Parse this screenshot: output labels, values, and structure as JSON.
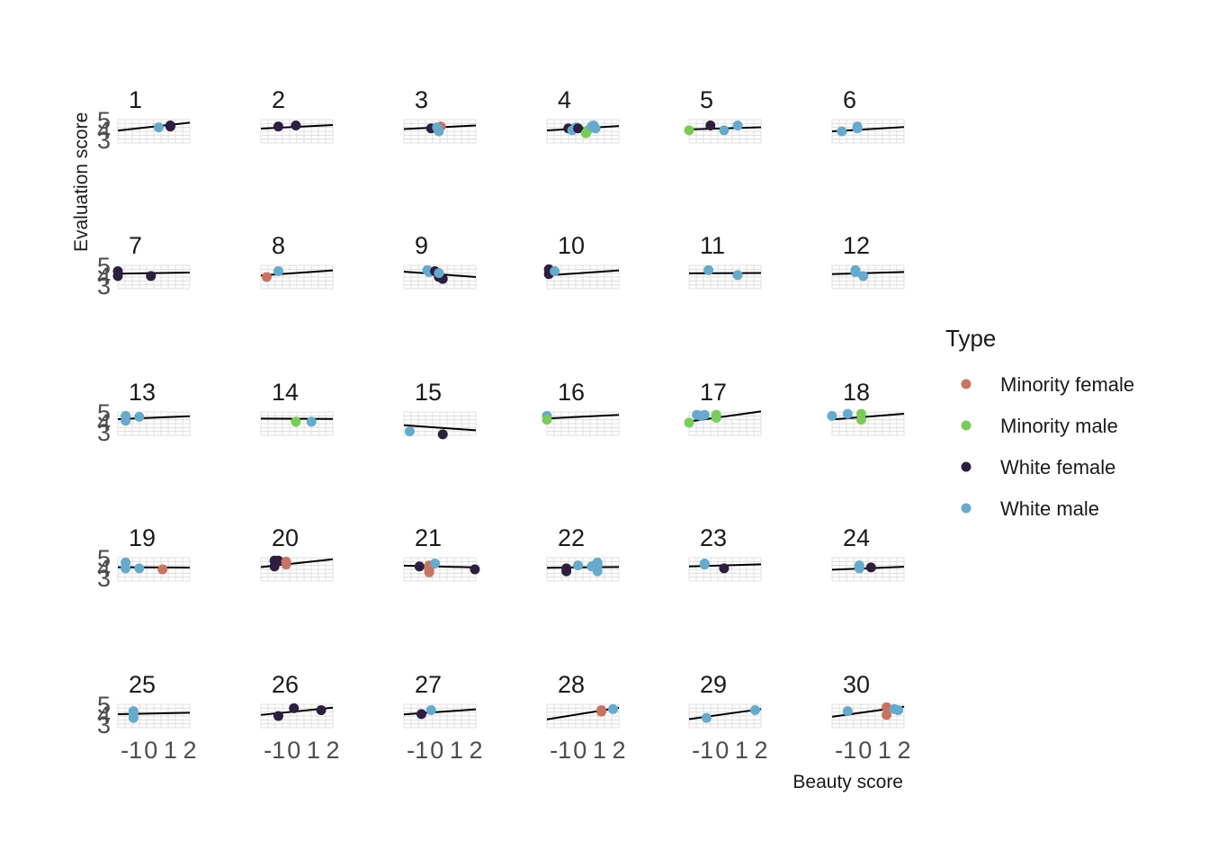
{
  "chart_data": {
    "type": "scatter",
    "facet_by": "Instructor",
    "xlabel": "Beauty score",
    "ylabel": "Evaluation score",
    "x_ticks": [
      "-1",
      "0",
      "1",
      "2"
    ],
    "y_ticks": [
      "5",
      "4",
      "3"
    ],
    "xlim": [
      -1.7,
      2.0
    ],
    "ylim": [
      2.7,
      5.1
    ],
    "grid": true,
    "legend": {
      "title": "Type",
      "placement": "right",
      "entries": [
        {
          "name": "Minority female",
          "color": "#C87463"
        },
        {
          "name": "Minority male",
          "color": "#7ACC59"
        },
        {
          "name": "White female",
          "color": "#2E1E3F"
        },
        {
          "name": "White male",
          "color": "#66AACC"
        }
      ]
    },
    "line_color": "#000000",
    "panels": [
      {
        "label": "1",
        "fit": [
          4.35,
          0.22
        ],
        "points": [
          [
            0.4,
            4.3,
            "White male"
          ],
          [
            1.0,
            4.5,
            "White female"
          ],
          [
            1.0,
            4.4,
            "White female"
          ]
        ]
      },
      {
        "label": "2",
        "fit": [
          4.35,
          0.1
        ],
        "points": [
          [
            -0.8,
            4.4,
            "White female"
          ],
          [
            0.1,
            4.5,
            "White female"
          ]
        ]
      },
      {
        "label": "3",
        "fit": [
          4.3,
          0.1
        ],
        "points": [
          [
            -0.3,
            4.2,
            "White female"
          ],
          [
            0.2,
            4.4,
            "Minority female"
          ],
          [
            0.1,
            3.9,
            "White male"
          ],
          [
            0.0,
            4.3,
            "White male"
          ]
        ]
      },
      {
        "label": "4",
        "fit": [
          4.2,
          0.12
        ],
        "points": [
          [
            -0.6,
            4.2,
            "White female"
          ],
          [
            -0.4,
            4.0,
            "White male"
          ],
          [
            -0.2,
            4.3,
            "White male"
          ],
          [
            -0.1,
            4.2,
            "White female"
          ],
          [
            0.3,
            3.7,
            "Minority male"
          ],
          [
            0.4,
            4.0,
            "Minority male"
          ],
          [
            0.6,
            4.4,
            "White male"
          ],
          [
            0.7,
            4.5,
            "White male"
          ],
          [
            0.8,
            4.2,
            "White male"
          ]
        ]
      },
      {
        "label": "5",
        "fit": [
          4.2,
          0.06
        ],
        "points": [
          [
            -1.7,
            4.0,
            "Minority male"
          ],
          [
            -0.6,
            4.5,
            "White female"
          ],
          [
            0.1,
            4.0,
            "White male"
          ],
          [
            0.8,
            4.5,
            "White male"
          ]
        ]
      },
      {
        "label": "6",
        "fit": [
          4.1,
          0.12
        ],
        "points": [
          [
            -1.2,
            3.9,
            "White male"
          ],
          [
            -0.4,
            4.2,
            "White male"
          ],
          [
            -0.4,
            4.4,
            "White male"
          ]
        ]
      },
      {
        "label": "7",
        "fit": [
          4.3,
          0.03
        ],
        "points": [
          [
            -1.7,
            4.5,
            "White female"
          ],
          [
            -1.7,
            4.0,
            "White female"
          ],
          [
            0.0,
            4.0,
            "White female"
          ]
        ]
      },
      {
        "label": "8",
        "fit": [
          4.3,
          0.14
        ],
        "points": [
          [
            -1.4,
            3.9,
            "Minority female"
          ],
          [
            -0.8,
            4.5,
            "White male"
          ]
        ]
      },
      {
        "label": "9",
        "fit": [
          4.2,
          -0.15
        ],
        "points": [
          [
            -0.5,
            4.6,
            "White male"
          ],
          [
            -0.4,
            4.5,
            "White male"
          ],
          [
            -0.4,
            4.4,
            "White male"
          ],
          [
            -0.1,
            4.5,
            "White female"
          ],
          [
            0.1,
            3.9,
            "White female"
          ],
          [
            0.3,
            3.7,
            "White female"
          ],
          [
            0.1,
            4.3,
            "White male"
          ]
        ]
      },
      {
        "label": "10",
        "fit": [
          4.3,
          0.14
        ],
        "points": [
          [
            -1.6,
            4.7,
            "White female"
          ],
          [
            -1.6,
            4.2,
            "White female"
          ],
          [
            -1.3,
            4.5,
            "White male"
          ]
        ]
      },
      {
        "label": "11",
        "fit": [
          4.3,
          0.01
        ],
        "points": [
          [
            -0.7,
            4.6,
            "White male"
          ],
          [
            0.8,
            4.1,
            "White male"
          ]
        ]
      },
      {
        "label": "12",
        "fit": [
          4.3,
          0.06
        ],
        "points": [
          [
            -0.5,
            4.6,
            "White male"
          ],
          [
            -0.5,
            4.4,
            "White male"
          ],
          [
            -0.1,
            4.0,
            "White male"
          ]
        ]
      },
      {
        "label": "13",
        "fit": [
          4.5,
          0.08
        ],
        "points": [
          [
            -1.3,
            4.7,
            "White male"
          ],
          [
            -1.3,
            4.2,
            "White male"
          ],
          [
            -0.6,
            4.6,
            "White male"
          ]
        ]
      },
      {
        "label": "14",
        "fit": [
          4.4,
          -0.01
        ],
        "points": [
          [
            0.1,
            4.1,
            "Minority male"
          ],
          [
            0.9,
            4.1,
            "White male"
          ]
        ]
      },
      {
        "label": "15",
        "fit": [
          3.5,
          -0.14
        ],
        "points": [
          [
            -1.4,
            3.1,
            "White male"
          ],
          [
            0.3,
            2.8,
            "White female"
          ]
        ]
      },
      {
        "label": "16",
        "fit": [
          4.6,
          0.1
        ],
        "points": [
          [
            -1.7,
            4.7,
            "White male"
          ],
          [
            -1.7,
            4.3,
            "Minority male"
          ]
        ]
      },
      {
        "label": "17",
        "fit": [
          4.6,
          0.28
        ],
        "points": [
          [
            -1.7,
            4.0,
            "Minority male"
          ],
          [
            -1.3,
            4.8,
            "White male"
          ],
          [
            -1.1,
            4.7,
            "White male"
          ],
          [
            -0.9,
            4.8,
            "White male"
          ],
          [
            -0.3,
            4.8,
            "Minority male"
          ],
          [
            -0.3,
            4.5,
            "Minority male"
          ]
        ]
      },
      {
        "label": "18",
        "fit": [
          4.6,
          0.16
        ],
        "points": [
          [
            -1.7,
            4.7,
            "White male"
          ],
          [
            -0.9,
            4.9,
            "White male"
          ],
          [
            -0.2,
            4.9,
            "Minority male"
          ],
          [
            -0.2,
            4.3,
            "Minority male"
          ]
        ]
      },
      {
        "label": "19",
        "fit": [
          4.1,
          -0.01
        ],
        "points": [
          [
            -1.3,
            4.6,
            "White male"
          ],
          [
            -1.3,
            4.0,
            "White male"
          ],
          [
            -0.6,
            4.0,
            "White male"
          ],
          [
            0.6,
            3.9,
            "Minority female"
          ]
        ]
      },
      {
        "label": "20",
        "fit": [
          4.5,
          0.22
        ],
        "points": [
          [
            -1.0,
            4.8,
            "White female"
          ],
          [
            -0.8,
            4.8,
            "White female"
          ],
          [
            -1.0,
            4.2,
            "White female"
          ],
          [
            -0.4,
            4.7,
            "Minority female"
          ],
          [
            -0.4,
            4.4,
            "Minority female"
          ]
        ]
      },
      {
        "label": "21",
        "fit": [
          4.2,
          -0.05
        ],
        "points": [
          [
            -0.9,
            4.2,
            "White female"
          ],
          [
            -0.4,
            4.3,
            "Minority female"
          ],
          [
            -0.4,
            4.1,
            "Minority female"
          ],
          [
            -0.4,
            3.9,
            "Minority female"
          ],
          [
            -0.4,
            3.8,
            "Minority female"
          ],
          [
            -0.4,
            3.6,
            "Minority female"
          ],
          [
            -0.1,
            4.5,
            "White male"
          ],
          [
            1.95,
            3.9,
            "White female"
          ]
        ]
      },
      {
        "label": "22",
        "fit": [
          4.1,
          0.02
        ],
        "points": [
          [
            -0.7,
            4.0,
            "White female"
          ],
          [
            -0.7,
            3.7,
            "White female"
          ],
          [
            -0.1,
            4.3,
            "White male"
          ],
          [
            0.6,
            4.2,
            "White male"
          ],
          [
            0.8,
            4.4,
            "White male"
          ],
          [
            0.9,
            4.6,
            "White male"
          ],
          [
            0.9,
            4.3,
            "White male"
          ],
          [
            0.9,
            3.7,
            "White male"
          ]
        ]
      },
      {
        "label": "23",
        "fit": [
          4.3,
          0.06
        ],
        "points": [
          [
            -0.9,
            4.5,
            "White male"
          ],
          [
            -0.9,
            4.4,
            "White male"
          ],
          [
            0.1,
            4.0,
            "White female"
          ]
        ]
      },
      {
        "label": "24",
        "fit": [
          4.0,
          0.08
        ],
        "points": [
          [
            -0.3,
            4.3,
            "White male"
          ],
          [
            -0.3,
            4.0,
            "White male"
          ],
          [
            0.3,
            4.1,
            "White female"
          ]
        ]
      },
      {
        "label": "25",
        "fit": [
          4.15,
          0.04
        ],
        "points": [
          [
            -0.9,
            4.4,
            "White male"
          ],
          [
            -0.9,
            4.1,
            "White male"
          ],
          [
            -0.9,
            3.7,
            "White male"
          ]
        ]
      },
      {
        "label": "26",
        "fit": [
          4.35,
          0.2
        ],
        "points": [
          [
            -0.8,
            3.9,
            "White female"
          ],
          [
            0.0,
            4.7,
            "White female"
          ],
          [
            1.4,
            4.5,
            "White female"
          ]
        ]
      },
      {
        "label": "27",
        "fit": [
          4.3,
          0.14
        ],
        "points": [
          [
            -0.8,
            4.1,
            "White female"
          ],
          [
            -0.3,
            4.5,
            "White male"
          ]
        ]
      },
      {
        "label": "28",
        "fit": [
          4.1,
          0.32
        ],
        "points": [
          [
            1.1,
            4.5,
            "Minority female"
          ],
          [
            1.1,
            4.35,
            "Minority female"
          ],
          [
            1.7,
            4.6,
            "White male"
          ]
        ]
      },
      {
        "label": "29",
        "fit": [
          4.05,
          0.28
        ],
        "points": [
          [
            -0.8,
            3.7,
            "White male"
          ],
          [
            1.7,
            4.5,
            "White male"
          ]
        ]
      },
      {
        "label": "30",
        "fit": [
          4.3,
          0.28
        ],
        "points": [
          [
            -0.9,
            4.4,
            "White male"
          ],
          [
            1.1,
            4.8,
            "Minority female"
          ],
          [
            1.1,
            4.0,
            "Minority female"
          ],
          [
            1.5,
            4.6,
            "White male"
          ],
          [
            1.7,
            4.5,
            "White male"
          ]
        ]
      }
    ]
  }
}
